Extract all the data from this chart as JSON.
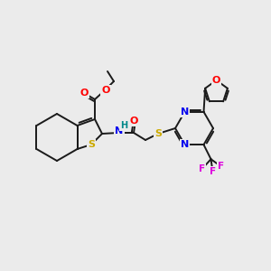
{
  "background_color": "#ebebeb",
  "bond_color": "#1a1a1a",
  "atom_colors": {
    "O": "#ff0000",
    "N": "#0000ee",
    "S": "#ccaa00",
    "F": "#dd00dd",
    "H": "#008888",
    "C": "#1a1a1a"
  },
  "figsize": [
    3.0,
    3.0
  ],
  "dpi": 100
}
